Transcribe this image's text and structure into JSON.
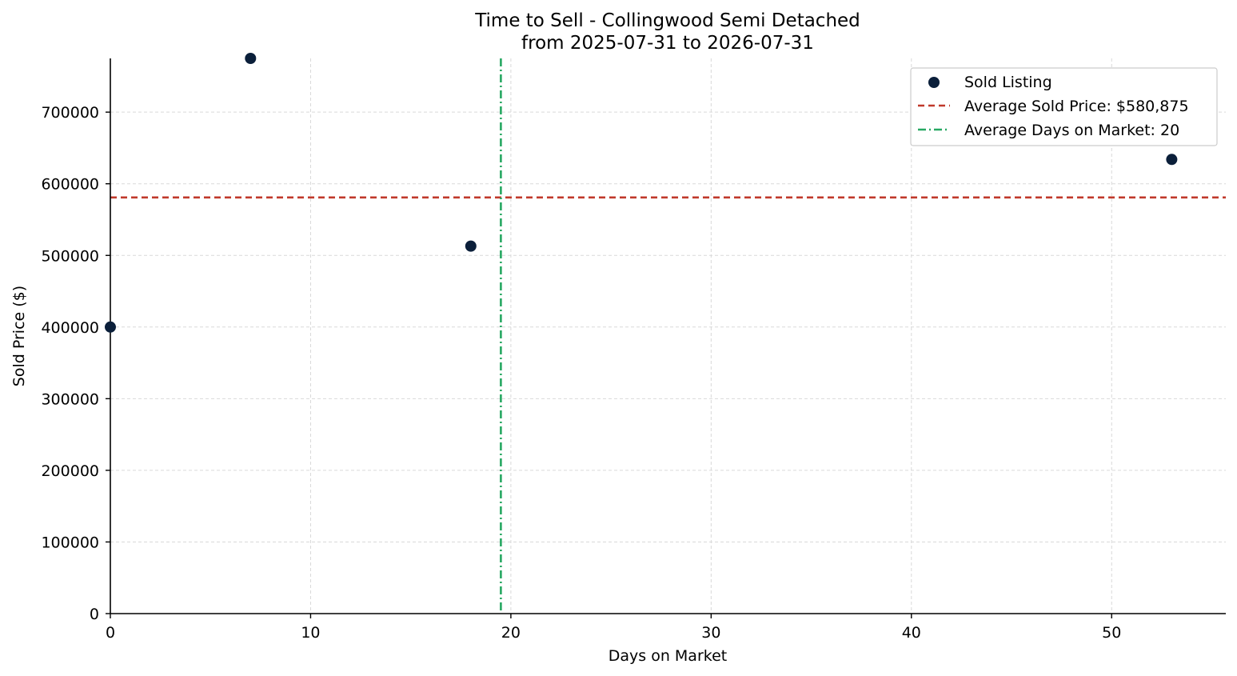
{
  "chart_data": {
    "type": "scatter",
    "title": "Time to Sell - Collingwood Semi Detached",
    "subtitle": "from 2025-07-31 to 2026-07-31",
    "xlabel": "Days on Market",
    "ylabel": "Sold Price ($)",
    "xlim": [
      0,
      55.7
    ],
    "ylim": [
      0,
      775000
    ],
    "xticks": [
      0,
      10,
      20,
      30,
      40,
      50
    ],
    "yticks": [
      0,
      100000,
      200000,
      300000,
      400000,
      500000,
      600000,
      700000
    ],
    "grid": true,
    "legend_position": "top-right",
    "series": [
      {
        "name": "Sold Listing",
        "color": "#0b1f3a",
        "points": [
          {
            "x": 0,
            "y": 400000
          },
          {
            "x": 7,
            "y": 775000
          },
          {
            "x": 18,
            "y": 513000
          },
          {
            "x": 53,
            "y": 634000
          }
        ]
      }
    ],
    "reference_lines": [
      {
        "name": "Average Sold Price: $580,875",
        "orientation": "horizontal",
        "value": 580875,
        "color": "#c0392b",
        "style": "dashed"
      },
      {
        "name": "Average Days on Market: 20",
        "orientation": "vertical",
        "value": 19.5,
        "color": "#27a862",
        "style": "dashdot"
      }
    ]
  }
}
